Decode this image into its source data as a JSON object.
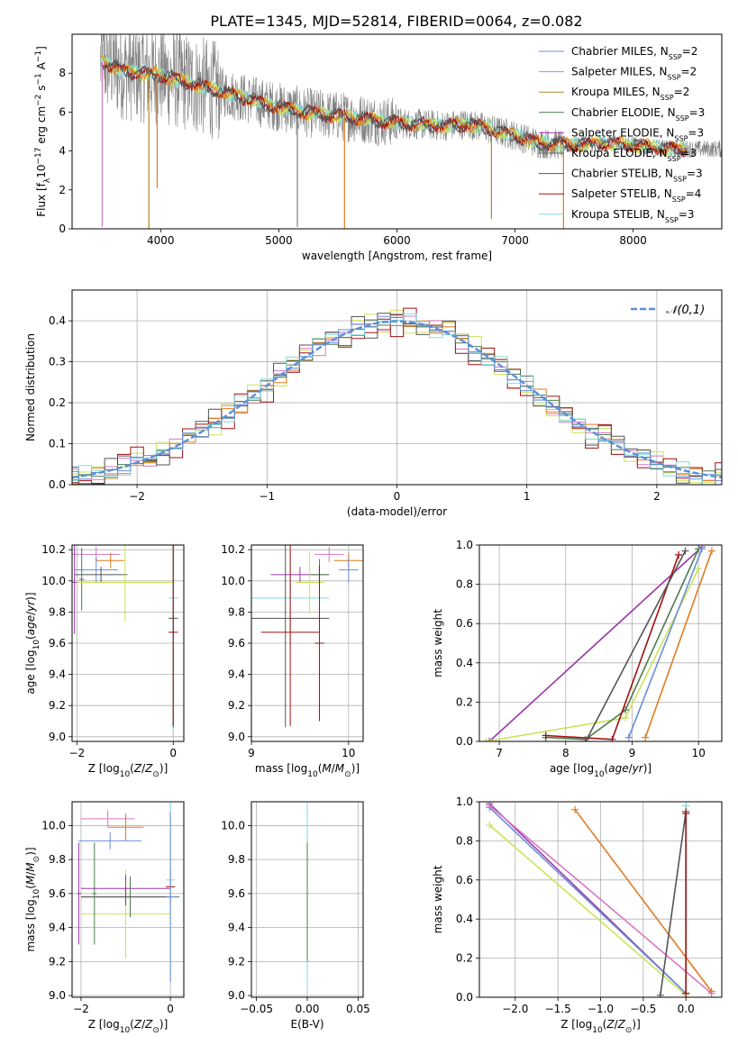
{
  "title": "PLATE=1345, MJD=52814, FIBERID=0064, z=0.082",
  "colors": {
    "c_miles": "#6a8fd8",
    "s_miles": "#d778c0",
    "k_miles": "#b08a22",
    "c_elodie": "#4e7a4e",
    "s_elodie": "#9b36a8",
    "k_elodie": "#4e7a4e",
    "c_stelib": "#555555",
    "s_stelib": "#a01010",
    "k_stelib": "#7fdcdc",
    "orange": "#e07b1f",
    "lime": "#cbe357",
    "data": "#808080",
    "gauss": "#5b8fd8"
  },
  "chart_data": [
    {
      "id": "spectrum",
      "type": "line",
      "xlabel": "wavelength [Angstrom, rest frame]",
      "ylabel": "Flux [f_λ 10^-17 erg cm^-2 s^-1 A^-1]",
      "xlim": [
        3250,
        8750
      ],
      "ylim": [
        0,
        10
      ],
      "xticks": [
        4000,
        5000,
        6000,
        7000,
        8000
      ],
      "yticks": [
        0,
        2,
        4,
        6,
        8
      ],
      "legend": [
        {
          "base": "Chabrier MILES, N",
          "sub": "SSP",
          "tail": "=2",
          "color": "c_miles"
        },
        {
          "base": "Salpeter MILES, N",
          "sub": "SSP",
          "tail": "=2",
          "color": "s_miles"
        },
        {
          "base": "Kroupa MILES, N",
          "sub": "SSP",
          "tail": "=2",
          "color": "k_miles"
        },
        {
          "base": "Chabrier ELODIE, N",
          "sub": "SSP",
          "tail": "=3",
          "color": "c_elodie"
        },
        {
          "base": "Salpeter ELODIE, N",
          "sub": "SSP",
          "tail": "=3",
          "color": "s_elodie"
        },
        {
          "base": "Kroupa ELODIE, N",
          "sub": "SSP",
          "tail": "=3",
          "color": "k_elodie"
        },
        {
          "base": "Chabrier STELIB, N",
          "sub": "SSP",
          "tail": "=3",
          "color": "c_stelib"
        },
        {
          "base": "Salpeter STELIB, N",
          "sub": "SSP",
          "tail": "=4",
          "color": "s_stelib"
        },
        {
          "base": "Kroupa STELIB, N",
          "sub": "SSP",
          "tail": "=3",
          "color": "k_stelib"
        }
      ],
      "continuum": [
        [
          3500,
          8.6
        ],
        [
          3700,
          8.1
        ],
        [
          4000,
          7.9
        ],
        [
          4300,
          7.4
        ],
        [
          4600,
          6.9
        ],
        [
          4900,
          6.4
        ],
        [
          5200,
          6.0
        ],
        [
          5500,
          5.8
        ],
        [
          5800,
          5.6
        ],
        [
          6100,
          5.4
        ],
        [
          6400,
          5.3
        ],
        [
          6600,
          5.4
        ],
        [
          6800,
          5.1
        ],
        [
          7000,
          4.8
        ],
        [
          7200,
          4.4
        ],
        [
          7500,
          4.3
        ],
        [
          7800,
          4.4
        ],
        [
          8000,
          4.3
        ],
        [
          8300,
          4.1
        ]
      ],
      "model_end": 8450,
      "data_end": 8750,
      "model_colors": [
        "k_stelib",
        "lime",
        "orange",
        "s_stelib",
        "c_stelib"
      ],
      "spikes": [
        {
          "x": 3505,
          "y": 0.1,
          "color": "s_miles"
        },
        {
          "x": 3900,
          "y": 0.0,
          "color": "k_miles"
        },
        {
          "x": 3970,
          "y": 2.1,
          "color": "orange"
        },
        {
          "x": 5157,
          "y": 0.1,
          "color": "data"
        },
        {
          "x": 5556,
          "y": 0.0,
          "color": "orange"
        },
        {
          "x": 6800,
          "y": 0.5,
          "color": "k_miles"
        },
        {
          "x": 7410,
          "y": 0.0,
          "color": "orange"
        }
      ]
    },
    {
      "id": "residuals",
      "type": "histogram",
      "xlabel": "(data-model)/error",
      "ylabel": "Normed distribution",
      "xlim": [
        -2.5,
        2.5
      ],
      "ylim": [
        0,
        0.475
      ],
      "xticks": [
        -2,
        -1,
        0,
        1,
        2
      ],
      "yticks": [
        0.0,
        0.1,
        0.2,
        0.3,
        0.4
      ],
      "legend": "𝒩(0,1)",
      "bin_width": 0.1,
      "series_colors": [
        "s_miles",
        "lime",
        "orange",
        "s_stelib",
        "c_elodie",
        "c_stelib",
        "k_stelib",
        "c_miles"
      ],
      "jitter": [
        0.022,
        0.03,
        0.018,
        0.041,
        0.012,
        0.035,
        0.025,
        0.015
      ]
    },
    {
      "id": "age-vs-Z",
      "type": "errorbar",
      "xlabel": "Z [log10(Z/Z⊙)]",
      "ylabel": "age [log10(age/yr)]",
      "xlim": [
        -2.1,
        0.22
      ],
      "ylim": [
        8.97,
        10.23
      ],
      "xticks": [
        -2,
        0
      ],
      "yticks": [
        9.0,
        9.2,
        9.4,
        9.6,
        9.8,
        10.0,
        10.2
      ],
      "points": [
        {
          "x": -1.6,
          "y": 10.17,
          "xerr": 0.5,
          "yerr": 0.05,
          "color": "s_miles"
        },
        {
          "x": -1.3,
          "y": 10.13,
          "xerr": 0.3,
          "yerr": 0.05,
          "color": "orange"
        },
        {
          "x": -1.6,
          "y": 10.07,
          "xerr": 0.45,
          "yerr": 0.08,
          "color": "c_miles"
        },
        {
          "x": -1.5,
          "y": 10.04,
          "xerr": 0.55,
          "yerr": 0.05,
          "color": "c_stelib"
        },
        {
          "x": -2.05,
          "y": 9.99,
          "xerr": 0.05,
          "yerr": 0.33,
          "color": "s_elodie"
        },
        {
          "x": -1.9,
          "y": 10.01,
          "xerr": 0.05,
          "yerr": 0.2,
          "color": "c_elodie"
        },
        {
          "x": -1.0,
          "y": 9.99,
          "xerr": 1.0,
          "yerr": 0.25,
          "color": "lime"
        },
        {
          "x": 0.0,
          "y": 9.89,
          "xerr": 0.1,
          "yerr": 0.87,
          "color": "k_stelib"
        },
        {
          "x": 0.0,
          "y": 9.76,
          "xerr": 0.1,
          "yerr": 0.7,
          "color": "c_stelib"
        },
        {
          "x": 0.0,
          "y": 9.67,
          "xerr": 0.1,
          "yerr": 0.6,
          "color": "s_stelib"
        }
      ]
    },
    {
      "id": "age-vs-mass",
      "type": "errorbar",
      "xlabel": "mass [log10(M/M⊙)]",
      "ylabel": "",
      "xlim": [
        9.0,
        10.15
      ],
      "ylim": [
        8.97,
        10.23
      ],
      "xticks": [
        9,
        10
      ],
      "yticks": [
        9.0,
        9.2,
        9.4,
        9.6,
        9.8,
        10.0,
        10.2
      ],
      "points": [
        {
          "x": 9.8,
          "y": 10.17,
          "xerr": 0.15,
          "yerr": 0.05,
          "color": "s_miles"
        },
        {
          "x": 10.0,
          "y": 10.13,
          "xerr": 0.15,
          "yerr": 0.05,
          "color": "orange"
        },
        {
          "x": 10.0,
          "y": 10.07,
          "xerr": 0.1,
          "yerr": 0.08,
          "color": "c_miles"
        },
        {
          "x": 9.5,
          "y": 10.04,
          "xerr": 0.3,
          "yerr": 0.05,
          "color": "s_elodie"
        },
        {
          "x": 9.7,
          "y": 10.04,
          "xerr": 0.1,
          "yerr": 0.1,
          "color": "c_elodie"
        },
        {
          "x": 9.6,
          "y": 9.99,
          "xerr": 0.15,
          "yerr": 0.2,
          "color": "lime"
        },
        {
          "x": 9.4,
          "y": 9.89,
          "xerr": 0.4,
          "yerr": 0.3,
          "color": "k_stelib"
        },
        {
          "x": 9.35,
          "y": 9.76,
          "xerr": 0.45,
          "yerr": 0.7,
          "color": "c_stelib"
        },
        {
          "x": 9.4,
          "y": 9.67,
          "xerr": 0.3,
          "yerr": 0.6,
          "color": "s_stelib"
        },
        {
          "x": 9.7,
          "y": 9.6,
          "xerr": 0.05,
          "yerr": 0.5,
          "color": "s_stelib"
        }
      ]
    },
    {
      "id": "mass-weight-vs-age",
      "type": "line",
      "xlabel": "age [log10(age/yr)]",
      "ylabel": "mass weight",
      "xlim": [
        6.7,
        10.35
      ],
      "ylim": [
        0,
        1.0
      ],
      "xticks": [
        7,
        8,
        9,
        10
      ],
      "yticks": [
        0.0,
        0.2,
        0.4,
        0.6,
        0.8,
        1.0
      ],
      "series": [
        {
          "color": "s_elodie",
          "points": [
            [
              6.85,
              0.0
            ],
            [
              10.05,
              0.99
            ]
          ]
        },
        {
          "color": "lime",
          "points": [
            [
              6.8,
              0.0
            ],
            [
              8.9,
              0.12
            ],
            [
              10.0,
              0.88
            ]
          ]
        },
        {
          "color": "c_elodie",
          "points": [
            [
              7.7,
              0.02
            ],
            [
              8.3,
              0.01
            ],
            [
              8.9,
              0.16
            ],
            [
              10.0,
              0.98
            ]
          ]
        },
        {
          "color": "c_miles",
          "points": [
            [
              8.95,
              0.02
            ],
            [
              10.05,
              0.98
            ]
          ]
        },
        {
          "color": "orange",
          "points": [
            [
              9.2,
              0.02
            ],
            [
              10.2,
              0.97
            ]
          ]
        },
        {
          "color": "s_stelib",
          "points": [
            [
              7.7,
              0.03
            ],
            [
              8.7,
              0.01
            ],
            [
              9.7,
              0.95
            ]
          ]
        },
        {
          "color": "c_stelib",
          "points": [
            [
              8.3,
              0.0
            ],
            [
              9.8,
              0.97
            ]
          ]
        }
      ]
    },
    {
      "id": "mass-vs-Z",
      "type": "errorbar",
      "xlabel": "Z [log10(Z/Z⊙)]",
      "ylabel": "mass [log10(M/M⊙)]",
      "xlim": [
        -2.2,
        0.3
      ],
      "ylim": [
        8.99,
        10.14
      ],
      "xticks": [
        -2,
        0
      ],
      "yticks": [
        9.0,
        9.2,
        9.4,
        9.6,
        9.8,
        10.0
      ],
      "points": [
        {
          "x": -1.4,
          "y": 10.04,
          "xerr": 0.6,
          "yerr": 0.05,
          "color": "s_miles"
        },
        {
          "x": -1.0,
          "y": 9.99,
          "xerr": 0.4,
          "yerr": 0.08,
          "color": "orange"
        },
        {
          "x": -1.35,
          "y": 9.91,
          "xerr": 0.7,
          "yerr": 0.05,
          "color": "c_miles"
        },
        {
          "x": -1.0,
          "y": 9.48,
          "xerr": 1.0,
          "yerr": 0.26,
          "color": "lime"
        },
        {
          "x": -1.0,
          "y": 9.63,
          "xerr": 1.0,
          "yerr": 0.08,
          "color": "s_elodie"
        },
        {
          "x": -0.9,
          "y": 9.58,
          "xerr": 1.1,
          "yerr": 0.12,
          "color": "c_elodie"
        },
        {
          "x": -1.0,
          "y": 9.58,
          "xerr": 1.0,
          "yerr": 0.05,
          "color": "c_stelib"
        },
        {
          "x": 0.0,
          "y": 9.64,
          "xerr": 0.1,
          "yerr": 0.1,
          "color": "s_stelib"
        },
        {
          "x": 0.0,
          "y": 9.68,
          "xerr": 0.1,
          "yerr": 0.6,
          "color": "k_stelib"
        },
        {
          "x": 0.0,
          "y": 9.58,
          "xerr": 0.1,
          "yerr": 0.5,
          "color": "c_miles"
        },
        {
          "x": -2.05,
          "y": 9.6,
          "xerr": 0.05,
          "yerr": 0.3,
          "color": "s_elodie"
        },
        {
          "x": -1.7,
          "y": 9.6,
          "xerr": 0.05,
          "yerr": 0.3,
          "color": "c_elodie"
        }
      ]
    },
    {
      "id": "mass-vs-EBV",
      "type": "errorbar",
      "xlabel": "E(B-V)",
      "ylabel": "",
      "xlim": [
        -0.055,
        0.055
      ],
      "ylim": [
        8.99,
        10.14
      ],
      "xticks": [
        -0.05,
        0.0,
        0.05
      ],
      "yticks": [
        9.0,
        9.2,
        9.4,
        9.6,
        9.8,
        10.0
      ],
      "points": [
        {
          "x": 0.0,
          "y": 9.98,
          "xerr": 0.0,
          "yerr": 0.1,
          "color": "orange"
        },
        {
          "x": 0.0,
          "y": 9.85,
          "xerr": 0.0,
          "yerr": 0.05,
          "color": "s_stelib"
        },
        {
          "x": 0.0,
          "y": 9.6,
          "xerr": 0.0,
          "yerr": 0.55,
          "color": "k_stelib"
        },
        {
          "x": 0.0,
          "y": 9.55,
          "xerr": 0.0,
          "yerr": 0.35,
          "color": "c_elodie"
        }
      ]
    },
    {
      "id": "mass-weight-vs-Z",
      "type": "line",
      "xlabel": "Z [log10(Z/Z⊙)]",
      "ylabel": "mass weight",
      "xlim": [
        -2.42,
        0.42
      ],
      "ylim": [
        0,
        1.0
      ],
      "xticks": [
        -2.0,
        -1.5,
        -1.0,
        -0.5,
        0.0
      ],
      "yticks": [
        0.0,
        0.2,
        0.4,
        0.6,
        0.8,
        1.0
      ],
      "series": [
        {
          "color": "s_elodie",
          "points": [
            [
              -2.3,
              0.99
            ],
            [
              0.0,
              0.02
            ]
          ]
        },
        {
          "color": "c_miles",
          "points": [
            [
              -2.3,
              0.97
            ],
            [
              0.0,
              0.02
            ]
          ]
        },
        {
          "color": "s_miles",
          "points": [
            [
              -2.3,
              0.98
            ],
            [
              0.3,
              0.02
            ]
          ]
        },
        {
          "color": "lime",
          "points": [
            [
              -2.3,
              0.88
            ],
            [
              0.0,
              0.01
            ]
          ]
        },
        {
          "color": "orange",
          "points": [
            [
              -1.3,
              0.96
            ],
            [
              0.3,
              0.03
            ]
          ]
        },
        {
          "color": "k_stelib",
          "points": [
            [
              0.0,
              0.98
            ],
            [
              0.0,
              0.02
            ]
          ]
        },
        {
          "color": "c_stelib",
          "points": [
            [
              0.0,
              0.95
            ],
            [
              -0.3,
              0.01
            ]
          ]
        },
        {
          "color": "s_stelib",
          "points": [
            [
              0.0,
              0.94
            ],
            [
              0.0,
              0.02
            ]
          ]
        }
      ]
    }
  ]
}
